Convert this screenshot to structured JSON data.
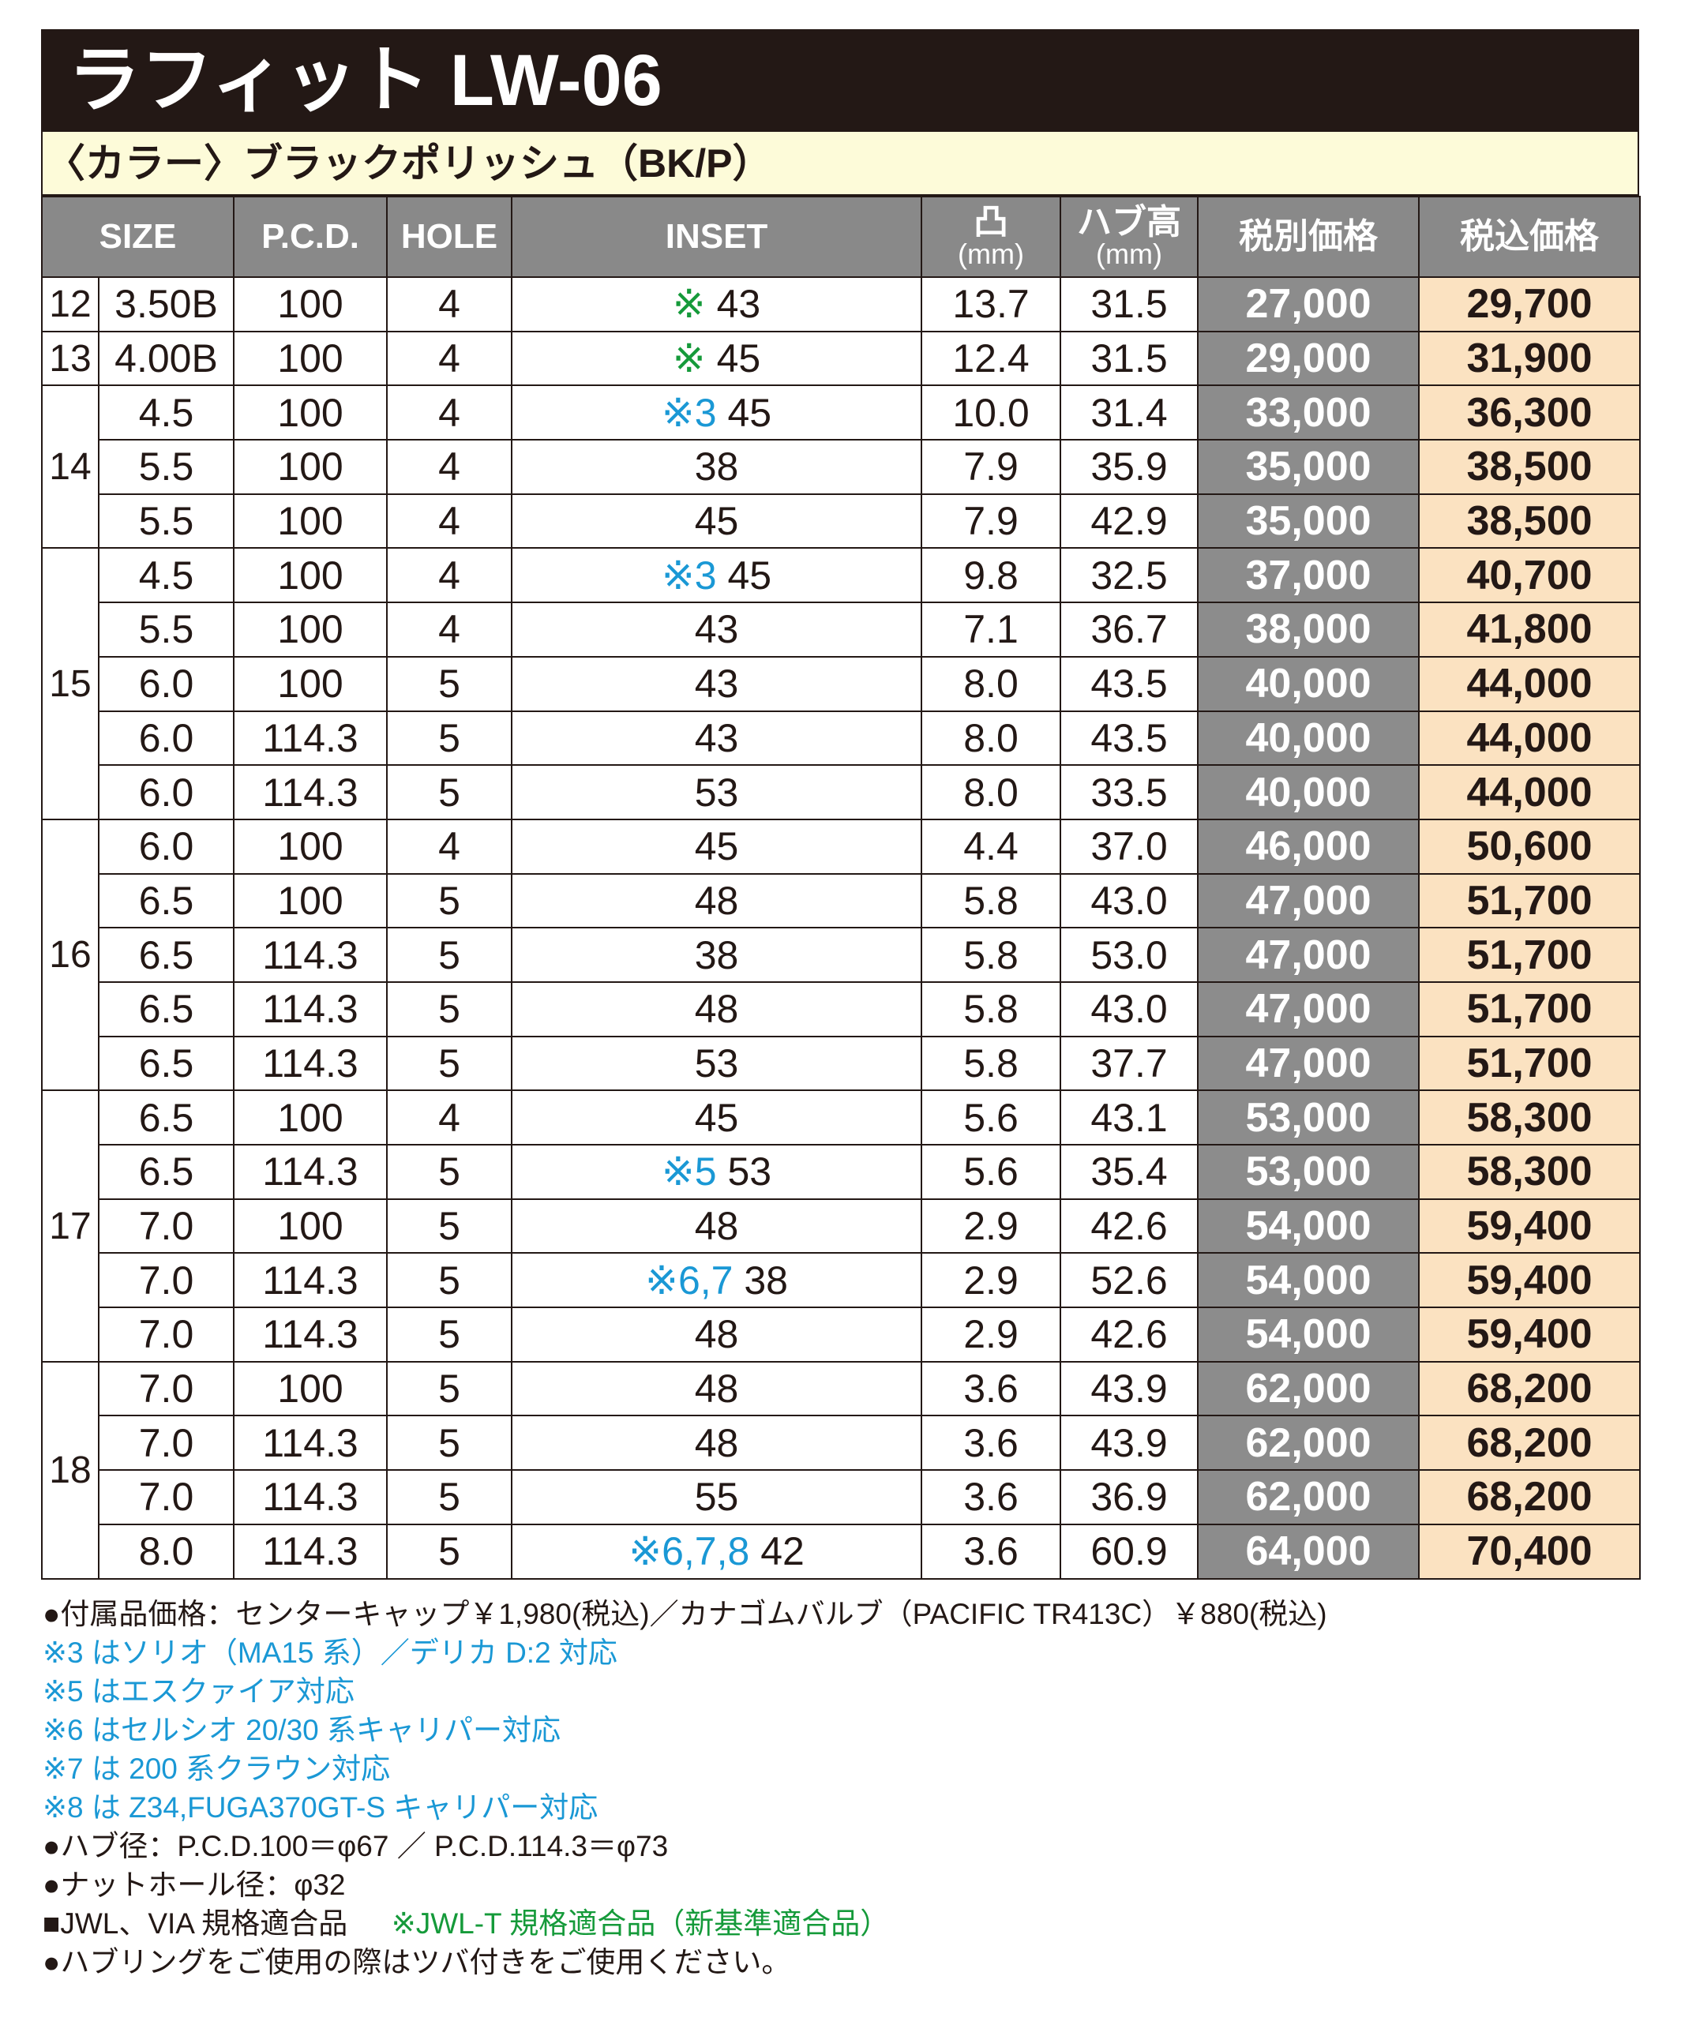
{
  "title": "ラフィット LW-06",
  "color_label": "〈カラー〉ブラックポリッシュ（BK/P）",
  "colors": {
    "title_bg": "#231815",
    "color_row_bg": "#fdfbd9",
    "header_bg": "#898989",
    "price_ex_bg": "#8c8c8c",
    "price_in_bg": "#fbe2c1",
    "note_blue": "#1a98d5",
    "note_green": "#159a3a"
  },
  "headers": {
    "size": "SIZE",
    "pcd": "P.C.D.",
    "hole": "HOLE",
    "inset": "INSET",
    "offset_top": "凸",
    "offset_unit": "(mm)",
    "hub_top": "ハブ高",
    "hub_unit": "(mm)",
    "price_ex": "税別価格",
    "price_in": "税込価格"
  },
  "groups": [
    {
      "rim": "12",
      "rows": [
        {
          "width": "3.50B",
          "pcd": "100",
          "hole": "4",
          "mark": "※",
          "mark_color": "green",
          "inset": "43",
          "offset": "13.7",
          "hub": "31.5",
          "price_ex": "27,000",
          "price_in": "29,700"
        }
      ]
    },
    {
      "rim": "13",
      "rows": [
        {
          "width": "4.00B",
          "pcd": "100",
          "hole": "4",
          "mark": "※",
          "mark_color": "green",
          "inset": "45",
          "offset": "12.4",
          "hub": "31.5",
          "price_ex": "29,000",
          "price_in": "31,900"
        }
      ]
    },
    {
      "rim": "14",
      "rows": [
        {
          "width": "4.5",
          "pcd": "100",
          "hole": "4",
          "mark": "※3",
          "mark_color": "blue",
          "inset": "45",
          "offset": "10.0",
          "hub": "31.4",
          "price_ex": "33,000",
          "price_in": "36,300"
        },
        {
          "width": "5.5",
          "pcd": "100",
          "hole": "4",
          "mark": "",
          "inset": "38",
          "offset": "7.9",
          "hub": "35.9",
          "price_ex": "35,000",
          "price_in": "38,500"
        },
        {
          "width": "5.5",
          "pcd": "100",
          "hole": "4",
          "mark": "",
          "inset": "45",
          "offset": "7.9",
          "hub": "42.9",
          "price_ex": "35,000",
          "price_in": "38,500"
        }
      ]
    },
    {
      "rim": "15",
      "rows": [
        {
          "width": "4.5",
          "pcd": "100",
          "hole": "4",
          "mark": "※3",
          "mark_color": "blue",
          "inset": "45",
          "offset": "9.8",
          "hub": "32.5",
          "price_ex": "37,000",
          "price_in": "40,700"
        },
        {
          "width": "5.5",
          "pcd": "100",
          "hole": "4",
          "mark": "",
          "inset": "43",
          "offset": "7.1",
          "hub": "36.7",
          "price_ex": "38,000",
          "price_in": "41,800"
        },
        {
          "width": "6.0",
          "pcd": "100",
          "hole": "5",
          "mark": "",
          "inset": "43",
          "offset": "8.0",
          "hub": "43.5",
          "price_ex": "40,000",
          "price_in": "44,000"
        },
        {
          "width": "6.0",
          "pcd": "114.3",
          "hole": "5",
          "mark": "",
          "inset": "43",
          "offset": "8.0",
          "hub": "43.5",
          "price_ex": "40,000",
          "price_in": "44,000"
        },
        {
          "width": "6.0",
          "pcd": "114.3",
          "hole": "5",
          "mark": "",
          "inset": "53",
          "offset": "8.0",
          "hub": "33.5",
          "price_ex": "40,000",
          "price_in": "44,000"
        }
      ]
    },
    {
      "rim": "16",
      "rows": [
        {
          "width": "6.0",
          "pcd": "100",
          "hole": "4",
          "mark": "",
          "inset": "45",
          "offset": "4.4",
          "hub": "37.0",
          "price_ex": "46,000",
          "price_in": "50,600"
        },
        {
          "width": "6.5",
          "pcd": "100",
          "hole": "5",
          "mark": "",
          "inset": "48",
          "offset": "5.8",
          "hub": "43.0",
          "price_ex": "47,000",
          "price_in": "51,700"
        },
        {
          "width": "6.5",
          "pcd": "114.3",
          "hole": "5",
          "mark": "",
          "inset": "38",
          "offset": "5.8",
          "hub": "53.0",
          "price_ex": "47,000",
          "price_in": "51,700"
        },
        {
          "width": "6.5",
          "pcd": "114.3",
          "hole": "5",
          "mark": "",
          "inset": "48",
          "offset": "5.8",
          "hub": "43.0",
          "price_ex": "47,000",
          "price_in": "51,700"
        },
        {
          "width": "6.5",
          "pcd": "114.3",
          "hole": "5",
          "mark": "",
          "inset": "53",
          "offset": "5.8",
          "hub": "37.7",
          "price_ex": "47,000",
          "price_in": "51,700"
        }
      ]
    },
    {
      "rim": "17",
      "rows": [
        {
          "width": "6.5",
          "pcd": "100",
          "hole": "4",
          "mark": "",
          "inset": "45",
          "offset": "5.6",
          "hub": "43.1",
          "price_ex": "53,000",
          "price_in": "58,300"
        },
        {
          "width": "6.5",
          "pcd": "114.3",
          "hole": "5",
          "mark": "※5",
          "mark_color": "blue",
          "inset": "53",
          "offset": "5.6",
          "hub": "35.4",
          "price_ex": "53,000",
          "price_in": "58,300"
        },
        {
          "width": "7.0",
          "pcd": "100",
          "hole": "5",
          "mark": "",
          "inset": "48",
          "offset": "2.9",
          "hub": "42.6",
          "price_ex": "54,000",
          "price_in": "59,400"
        },
        {
          "width": "7.0",
          "pcd": "114.3",
          "hole": "5",
          "mark": "※6,7",
          "mark_color": "blue",
          "inset": "38",
          "offset": "2.9",
          "hub": "52.6",
          "price_ex": "54,000",
          "price_in": "59,400"
        },
        {
          "width": "7.0",
          "pcd": "114.3",
          "hole": "5",
          "mark": "",
          "inset": "48",
          "offset": "2.9",
          "hub": "42.6",
          "price_ex": "54,000",
          "price_in": "59,400"
        }
      ]
    },
    {
      "rim": "18",
      "rows": [
        {
          "width": "7.0",
          "pcd": "100",
          "hole": "5",
          "mark": "",
          "inset": "48",
          "offset": "3.6",
          "hub": "43.9",
          "price_ex": "62,000",
          "price_in": "68,200"
        },
        {
          "width": "7.0",
          "pcd": "114.3",
          "hole": "5",
          "mark": "",
          "inset": "48",
          "offset": "3.6",
          "hub": "43.9",
          "price_ex": "62,000",
          "price_in": "68,200"
        },
        {
          "width": "7.0",
          "pcd": "114.3",
          "hole": "5",
          "mark": "",
          "inset": "55",
          "offset": "3.6",
          "hub": "36.9",
          "price_ex": "62,000",
          "price_in": "68,200"
        },
        {
          "width": "8.0",
          "pcd": "114.3",
          "hole": "5",
          "mark": "※6,7,8",
          "mark_color": "blue",
          "inset": "42",
          "offset": "3.6",
          "hub": "60.9",
          "price_ex": "64,000",
          "price_in": "70,400"
        }
      ]
    }
  ],
  "notes": {
    "accessories": "●付属品価格：センターキャップ￥1,980(税込)／カナゴムバルブ（PACIFIC TR413C）￥880(税込)",
    "note3": "※3 はソリオ（MA15 系）／デリカ D:2 対応",
    "note5": "※5 はエスクァイア対応",
    "note6": "※6 はセルシオ 20/30 系キャリパー対応",
    "note7": "※7 は 200 系クラウン対応",
    "note8": "※8 は Z34,FUGA370GT-S キャリパー対応",
    "hub_diameter": "●ハブ径：P.C.D.100＝φ67 ／ P.C.D.114.3＝φ73",
    "nut_hole": "●ナットホール径：φ32",
    "standard": "■JWL、VIA 規格適合品",
    "standard_t": "※JWL-T 規格適合品（新基準適合品）",
    "hub_ring": "●ハブリングをご使用の際はツバ付きをご使用ください。"
  }
}
